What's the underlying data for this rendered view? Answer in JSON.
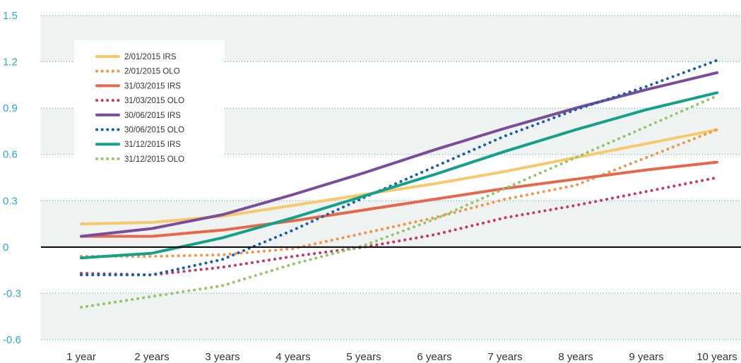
{
  "chart_data": {
    "type": "line",
    "title": "",
    "xlabel": "",
    "ylabel": "",
    "categories": [
      "1 year",
      "2 years",
      "3 years",
      "4 years",
      "5 years",
      "6 years",
      "7 years",
      "8 years",
      "9 years",
      "10 years"
    ],
    "ylim": [
      -0.6,
      1.5
    ],
    "yticks": [
      "1.5",
      "1.2",
      "0.9",
      "0.6",
      "0.3",
      "0",
      "-0.3",
      "-0.6"
    ],
    "grid": true,
    "legend_position": "top-left",
    "series": [
      {
        "name": "2/01/2015 IRS",
        "style": "solid",
        "color": "#f7c96a",
        "values": [
          0.15,
          0.16,
          0.2,
          0.27,
          0.34,
          0.41,
          0.49,
          0.58,
          0.67,
          0.76
        ]
      },
      {
        "name": "2/01/2015 OLO",
        "style": "dotted",
        "color": "#f0954e",
        "values": [
          -0.06,
          -0.06,
          -0.05,
          -0.01,
          0.09,
          0.19,
          0.31,
          0.4,
          0.58,
          0.76
        ]
      },
      {
        "name": "31/03/2015 IRS",
        "style": "solid",
        "color": "#e5674c",
        "values": [
          0.07,
          0.07,
          0.11,
          0.17,
          0.24,
          0.31,
          0.38,
          0.44,
          0.5,
          0.55
        ]
      },
      {
        "name": "31/03/2015 OLO",
        "style": "dotted",
        "color": "#c23a6a",
        "values": [
          -0.17,
          -0.18,
          -0.13,
          -0.06,
          0.0,
          0.08,
          0.19,
          0.27,
          0.36,
          0.45
        ]
      },
      {
        "name": "30/06/2015 IRS",
        "style": "solid",
        "color": "#7a4c9a",
        "values": [
          0.07,
          0.12,
          0.21,
          0.34,
          0.48,
          0.63,
          0.77,
          0.9,
          1.02,
          1.13
        ]
      },
      {
        "name": "30/06/2015 OLO",
        "style": "dotted",
        "color": "#1b5ea8",
        "values": [
          -0.18,
          -0.18,
          -0.08,
          0.11,
          0.32,
          0.52,
          0.72,
          0.89,
          1.04,
          1.21
        ]
      },
      {
        "name": "31/12/2015 IRS",
        "style": "solid",
        "color": "#14a08a",
        "values": [
          -0.07,
          -0.04,
          0.06,
          0.19,
          0.33,
          0.47,
          0.62,
          0.76,
          0.89,
          1.0
        ]
      },
      {
        "name": "31/12/2015 OLO",
        "style": "dotted",
        "color": "#93c465",
        "values": [
          -0.39,
          -0.32,
          -0.25,
          -0.11,
          0.01,
          0.18,
          0.38,
          0.58,
          0.78,
          0.98
        ]
      }
    ]
  }
}
